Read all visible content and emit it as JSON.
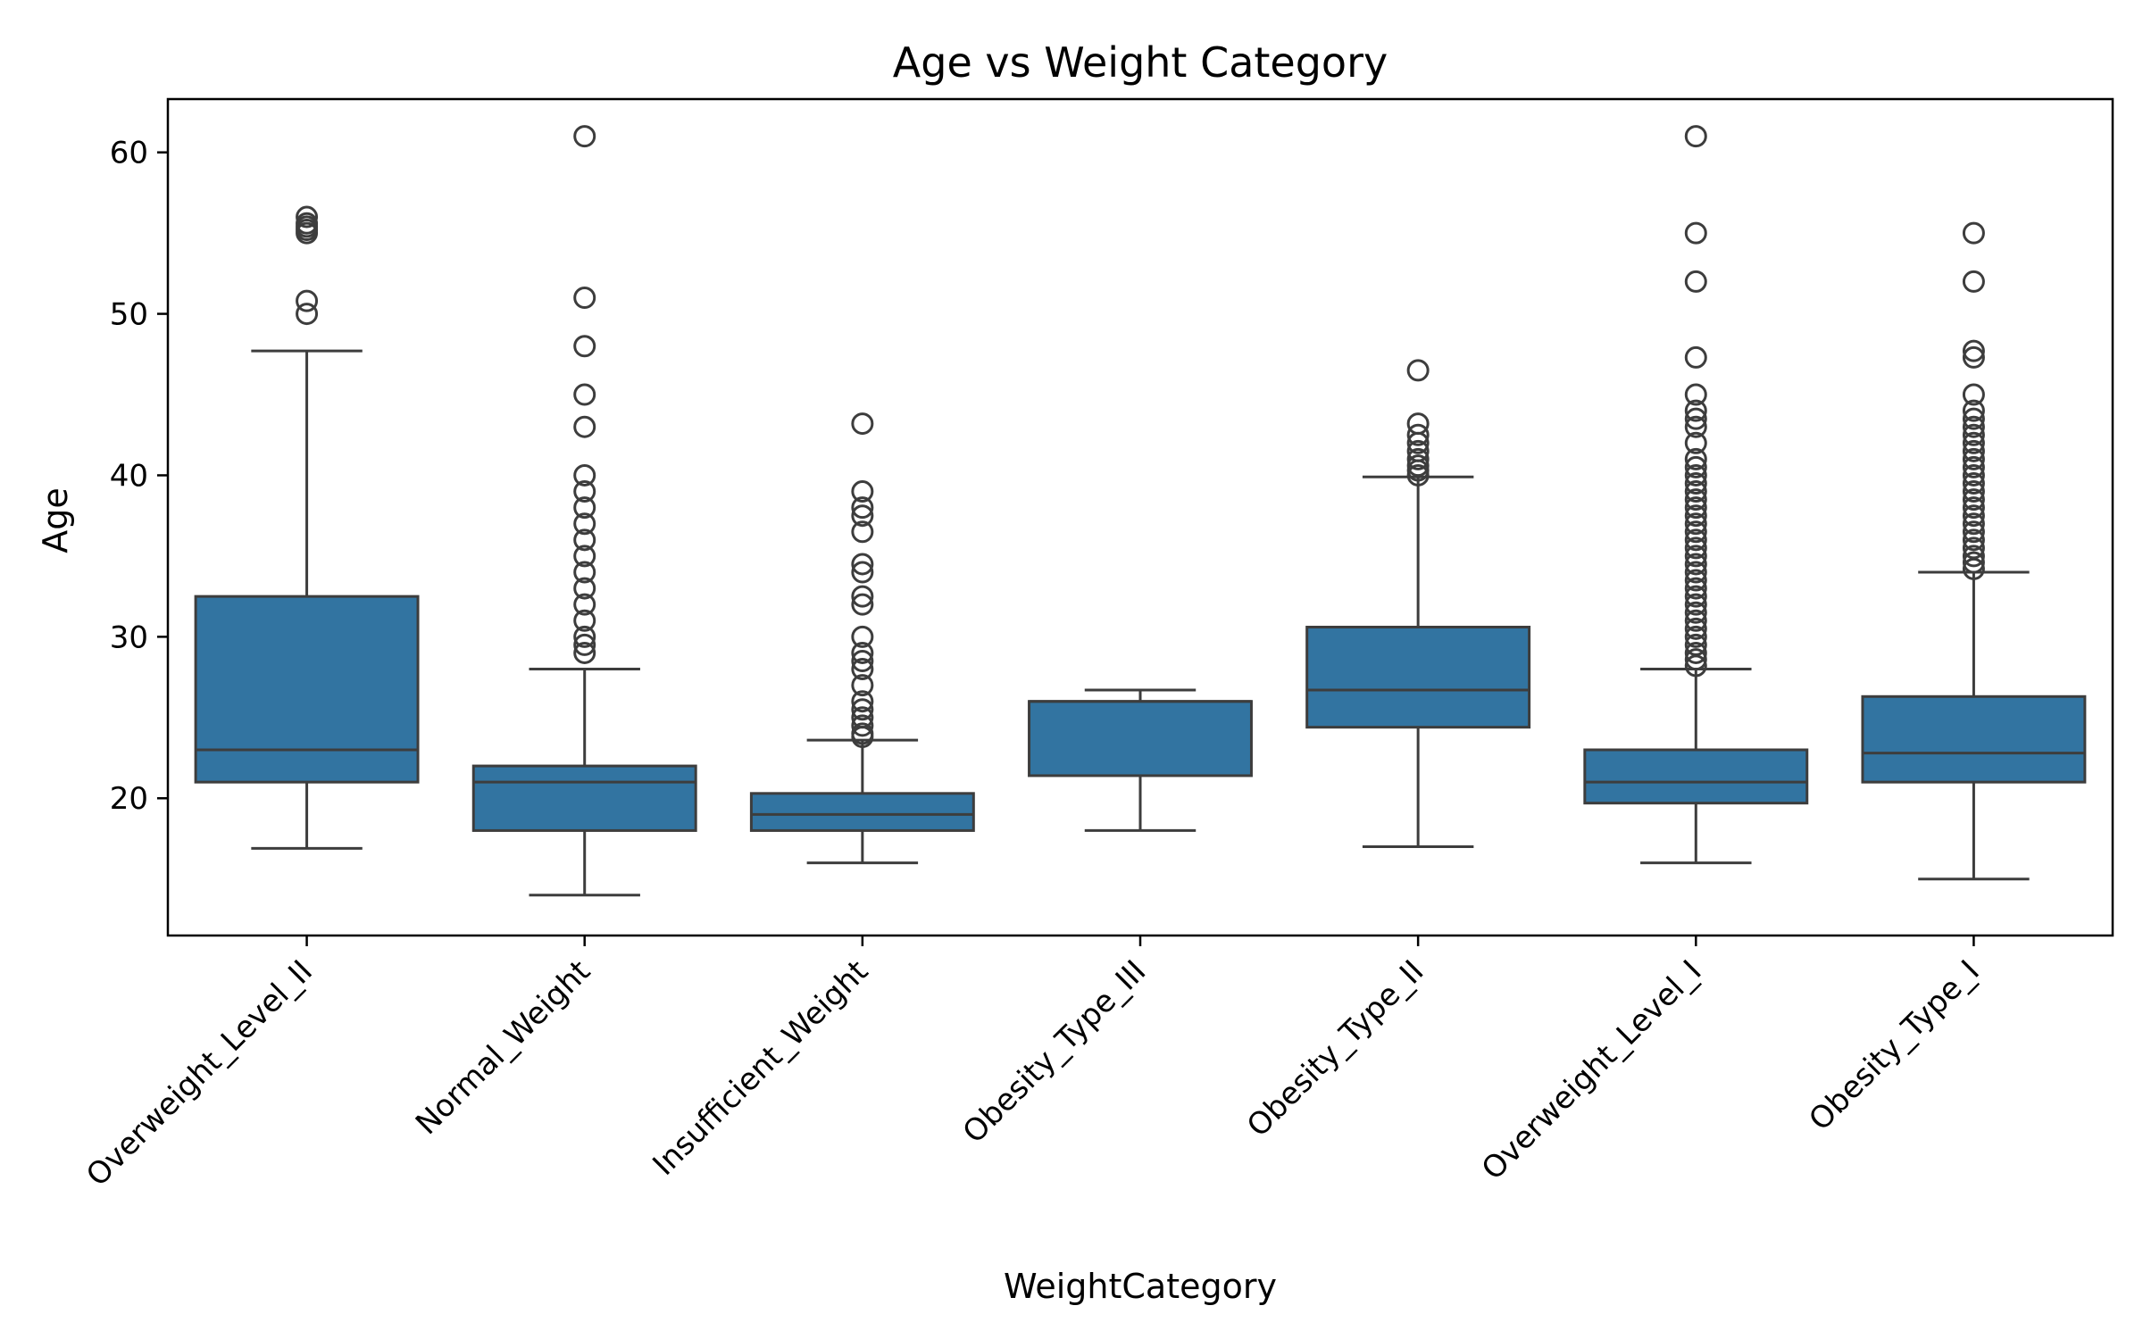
{
  "chart_data": {
    "type": "box",
    "title": "Age vs Weight Category",
    "xlabel": "WeightCategory",
    "ylabel": "Age",
    "ylim": [
      11.5,
      63.3
    ],
    "yticks": [
      20,
      30,
      40,
      50,
      60
    ],
    "grid": false,
    "legend": "none",
    "box_color": "#3274a1",
    "line_color": "#3d3d3d",
    "categories": [
      "Overweight_Level_II",
      "Normal_Weight",
      "Insufficient_Weight",
      "Obesity_Type_III",
      "Obesity_Type_II",
      "Overweight_Level_I",
      "Obesity_Type_I"
    ],
    "boxes": [
      {
        "category": "Overweight_Level_II",
        "whisker_low": 16.9,
        "q1": 21.0,
        "median": 23.0,
        "q3": 32.5,
        "whisker_high": 47.7,
        "outliers": [
          50.0,
          50.8,
          55.0,
          55.2,
          55.4,
          55.6,
          56.0
        ]
      },
      {
        "category": "Normal_Weight",
        "whisker_low": 14.0,
        "q1": 18.0,
        "median": 21.0,
        "q3": 22.0,
        "whisker_high": 28.0,
        "outliers": [
          29.0,
          29.5,
          30.0,
          31.0,
          32.0,
          33.0,
          34.0,
          35.0,
          36.0,
          37.0,
          38.0,
          39.0,
          40.0,
          43.0,
          45.0,
          48.0,
          51.0,
          61.0
        ]
      },
      {
        "category": "Insufficient_Weight",
        "whisker_low": 16.0,
        "q1": 18.0,
        "median": 19.0,
        "q3": 20.3,
        "whisker_high": 23.6,
        "outliers": [
          23.8,
          24.0,
          24.5,
          25.0,
          25.5,
          26.0,
          27.0,
          28.0,
          28.5,
          29.0,
          30.0,
          32.0,
          32.5,
          34.0,
          34.5,
          36.5,
          37.5,
          38.0,
          39.0,
          43.2
        ]
      },
      {
        "category": "Obesity_Type_III",
        "whisker_low": 18.0,
        "q1": 21.4,
        "median": 26.0,
        "q3": 26.0,
        "whisker_high": 26.7,
        "outliers": []
      },
      {
        "category": "Obesity_Type_II",
        "whisker_low": 17.0,
        "q1": 24.4,
        "median": 26.7,
        "q3": 30.6,
        "whisker_high": 39.9,
        "outliers": [
          40.0,
          40.3,
          40.6,
          41.0,
          41.5,
          42.0,
          42.5,
          43.2,
          46.5
        ]
      },
      {
        "category": "Overweight_Level_I",
        "whisker_low": 16.0,
        "q1": 19.7,
        "median": 21.0,
        "q3": 23.0,
        "whisker_high": 28.0,
        "outliers": [
          28.2,
          28.6,
          29.0,
          29.5,
          30.0,
          30.5,
          31.0,
          31.5,
          32.0,
          32.5,
          33.0,
          33.5,
          34.0,
          34.5,
          35.0,
          35.5,
          36.0,
          36.5,
          37.0,
          37.5,
          38.0,
          38.5,
          39.0,
          39.5,
          40.0,
          40.5,
          41.0,
          42.0,
          43.0,
          43.5,
          44.0,
          45.0,
          47.3,
          52.0,
          55.0,
          61.0
        ]
      },
      {
        "category": "Obesity_Type_I",
        "whisker_low": 15.0,
        "q1": 21.0,
        "median": 22.8,
        "q3": 26.3,
        "whisker_high": 34.0,
        "outliers": [
          34.2,
          34.6,
          35.0,
          35.5,
          36.0,
          36.5,
          37.0,
          37.5,
          38.0,
          38.5,
          39.0,
          39.5,
          40.0,
          40.5,
          41.0,
          41.5,
          42.0,
          42.5,
          43.0,
          43.5,
          44.0,
          45.0,
          47.3,
          47.7,
          52.0,
          55.0
        ]
      }
    ]
  }
}
